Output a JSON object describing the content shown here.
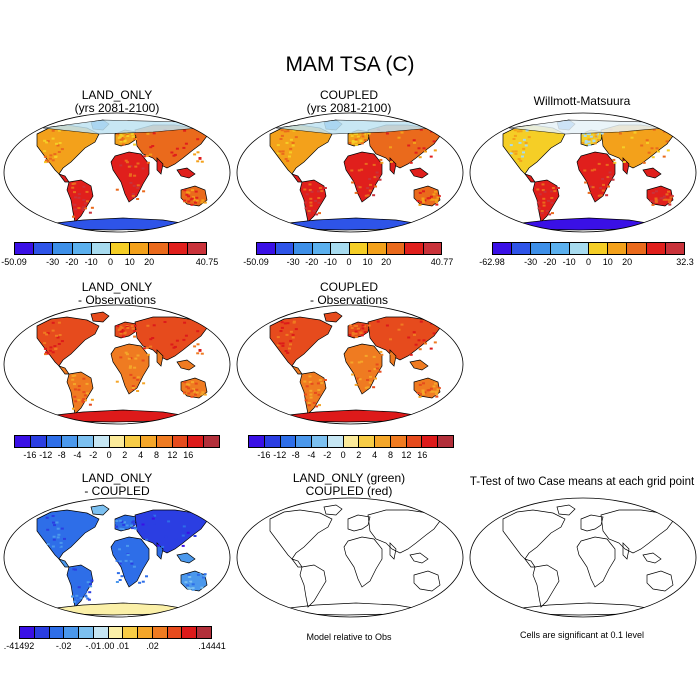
{
  "title": "MAM TSA (C)",
  "panels": {
    "p1": {
      "line1": "LAND_ONLY",
      "line2": "(yrs 2081-2100)"
    },
    "p2": {
      "line1": "COUPLED",
      "line2": "(yrs 2081-2100)"
    },
    "p3": {
      "line1": "Willmott-Matsuura",
      "line2": ""
    },
    "p4": {
      "line1": "LAND_ONLY",
      "line2": "- Observations"
    },
    "p5": {
      "line1": "COUPLED",
      "line2": "- Observations"
    },
    "p7": {
      "line1": "LAND_ONLY",
      "line2": "- COUPLED"
    },
    "p8": {
      "line1": "LAND_ONLY (green)",
      "line2": "COUPLED (red)"
    },
    "p9": {
      "line1": "T-Test of two Case means at each grid point",
      "line2": ""
    }
  },
  "colorbars": {
    "abs1": {
      "labels": [
        "-50.09",
        "-30",
        "-20",
        "-10",
        "0",
        "10",
        "20",
        "40.75"
      ]
    },
    "abs2": {
      "labels": [
        "-50.09",
        "-30",
        "-20",
        "-10",
        "0",
        "10",
        "20",
        "40.77"
      ]
    },
    "abs3": {
      "labels": [
        "-62.98",
        "-30",
        "-20",
        "-10",
        "0",
        "10",
        "20",
        "32.3"
      ]
    },
    "diff1": {
      "labels": [
        "-16",
        "-12",
        "-8",
        "-4",
        "-2",
        "0",
        "2",
        "4",
        "8",
        "12",
        "16"
      ]
    },
    "diff2": {
      "labels": [
        "-16",
        "-12",
        "-8",
        "-4",
        "-2",
        "0",
        "2",
        "4",
        "8",
        "12",
        "16"
      ]
    },
    "diff3": {
      "labels": [
        ".-41492",
        "-.02",
        "-.01",
        ".00",
        ".01",
        ".02",
        ".14441"
      ]
    }
  },
  "notes": {
    "model_rel": "Model relative to Obs",
    "significance": "Cells are significant at 0.1 level"
  },
  "colors": {
    "abs_palette": [
      "#3a10e6",
      "#2e54e8",
      "#3d8fe8",
      "#5bb0ee",
      "#a7dbef",
      "#f5ce26",
      "#f3a11b",
      "#ea6a1c",
      "#e01f1c",
      "#c9323a"
    ],
    "diff_palette": [
      "#3a10e6",
      "#2b3ee2",
      "#2e6ee8",
      "#4b98ec",
      "#7cc0f0",
      "#c6e6f3",
      "#fbea9a",
      "#f7cc46",
      "#f4a629",
      "#ef7b21",
      "#e64b1d",
      "#dd1a1a",
      "#b22f3a"
    ],
    "diff3_palette": [
      "#3a10e6",
      "#2b3ee2",
      "#2e6ee8",
      "#4b98ec",
      "#7cc0f0",
      "#c6e6f3",
      "#fbf0a8",
      "#f7cc46",
      "#f4a629",
      "#ef7b21",
      "#e64b1d",
      "#dd1a1a",
      "#b22f3a"
    ]
  }
}
